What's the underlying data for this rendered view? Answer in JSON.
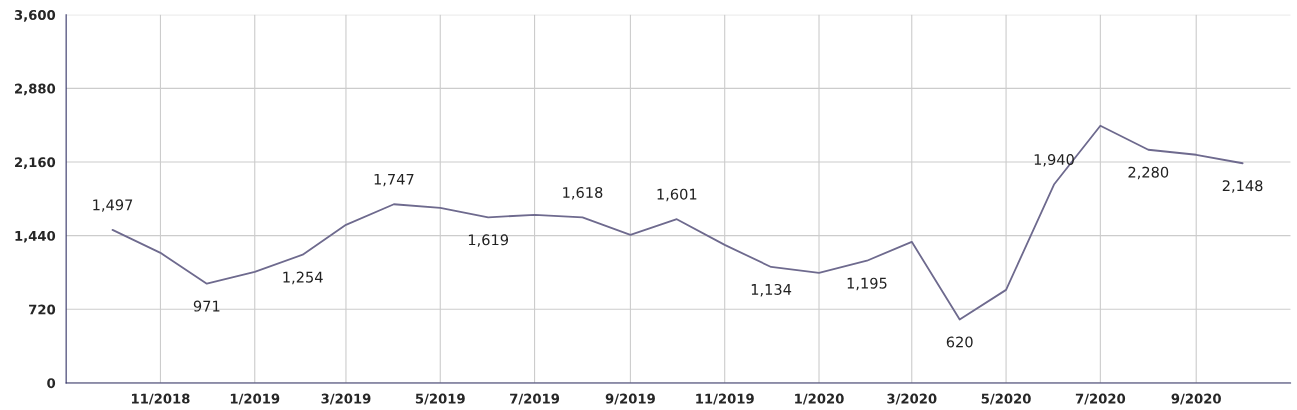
{
  "chart_data": {
    "type": "line",
    "x": [
      "2018-10",
      "2018-11",
      "2018-12",
      "2019-01",
      "2019-02",
      "2019-03",
      "2019-04",
      "2019-05",
      "2019-06",
      "2019-07",
      "2019-08",
      "2019-09",
      "2019-10",
      "2019-11",
      "2019-12",
      "2020-01",
      "2020-02",
      "2020-03",
      "2020-04",
      "2020-05",
      "2020-06",
      "2020-07",
      "2020-08",
      "2020-09",
      "2020-10"
    ],
    "series": [
      {
        "color": "#6e6a8e",
        "values": [
          1497,
          1272,
          971,
          1086,
          1254,
          1546,
          1747,
          1712,
          1619,
          1644,
          1618,
          1448,
          1601,
          1350,
          1134,
          1076,
          1195,
          1380,
          620,
          910,
          1940,
          2515,
          2280,
          2231,
          2148
        ],
        "value_labels": [
          "1,497",
          null,
          "971",
          null,
          "1,254",
          null,
          "1,747",
          null,
          "1,619",
          null,
          "1,618",
          null,
          "1,601",
          null,
          "1,134",
          null,
          "1,195",
          null,
          "620",
          null,
          "1,940",
          null,
          "2,280",
          null,
          "2,148"
        ]
      }
    ],
    "xlim": [
      "2018-09",
      "2020-11"
    ],
    "xticks": [
      {
        "value": "2018-11",
        "label": "11/2018"
      },
      {
        "value": "2019-01",
        "label": "1/2019"
      },
      {
        "value": "2019-03",
        "label": "3/2019"
      },
      {
        "value": "2019-05",
        "label": "5/2019"
      },
      {
        "value": "2019-07",
        "label": "7/2019"
      },
      {
        "value": "2019-09",
        "label": "9/2019"
      },
      {
        "value": "2019-11",
        "label": "11/2019"
      },
      {
        "value": "2020-01",
        "label": "1/2020"
      },
      {
        "value": "2020-03",
        "label": "3/2020"
      },
      {
        "value": "2020-05",
        "label": "5/2020"
      },
      {
        "value": "2020-07",
        "label": "7/2020"
      },
      {
        "value": "2020-09",
        "label": "9/2020"
      }
    ],
    "ylim": [
      0,
      3600
    ],
    "yticks": [
      0,
      720,
      {
        "value": 1440,
        "label": "1,440"
      },
      {
        "value": 2160,
        "label": "2,160"
      },
      {
        "value": 2880,
        "label": "2,880"
      },
      {
        "value": 3600,
        "label": "3,600"
      }
    ],
    "grid": true,
    "marker": "none",
    "line_style": "solid"
  }
}
